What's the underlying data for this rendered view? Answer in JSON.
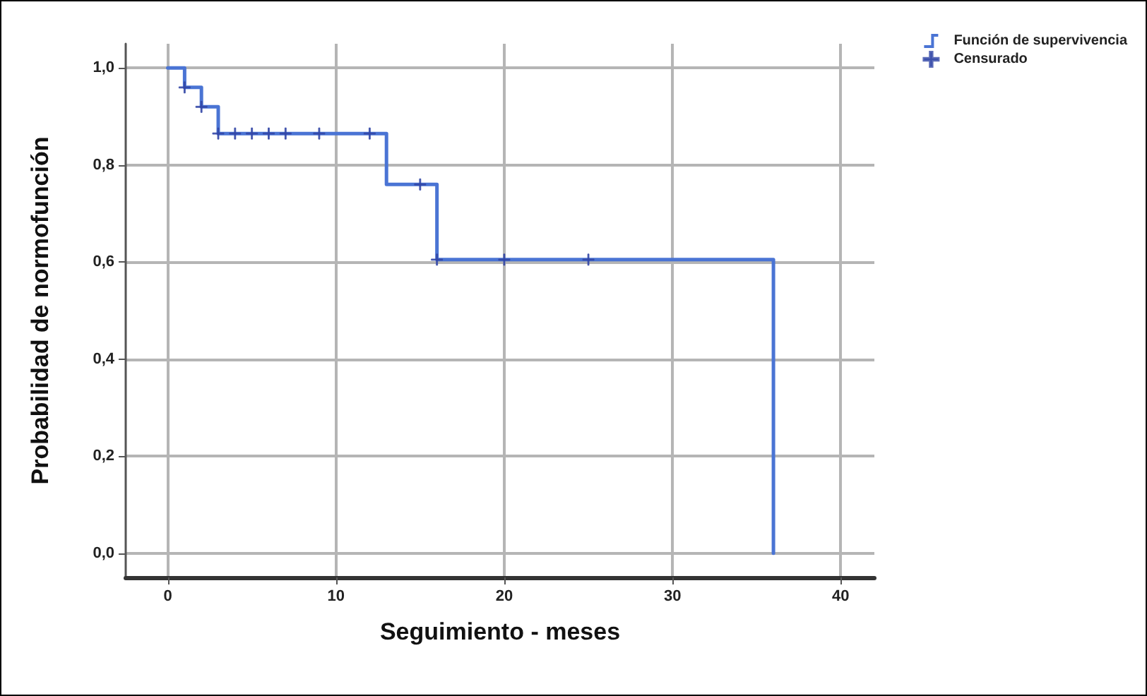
{
  "chart_data": {
    "type": "step",
    "xlabel": "Seguimiento - meses",
    "ylabel": "Probabilidad de normofunción",
    "series": [
      {
        "name": "Función de supervivencia",
        "color": "#4a74d4",
        "x": [
          0,
          1,
          2,
          3,
          13,
          16,
          36
        ],
        "values": [
          1,
          0.96,
          0.92,
          0.865,
          0.76,
          0.605,
          0
        ],
        "marker": "none",
        "line_style": "solid"
      },
      {
        "name": "Censurado",
        "type": "scatter",
        "color": "#3549a8",
        "x": [
          1,
          2,
          3,
          4,
          5,
          6,
          7,
          9,
          12,
          15,
          16,
          20,
          25
        ],
        "values": [
          0.96,
          0.92,
          0.865,
          0.865,
          0.865,
          0.865,
          0.865,
          0.865,
          0.865,
          0.76,
          0.605,
          0.605,
          0.605
        ],
        "marker": "cross"
      }
    ],
    "xlim": [
      -2.5,
      42
    ],
    "ylim": [
      -0.05,
      1.05
    ],
    "xticks": [
      0,
      10,
      20,
      30,
      40
    ],
    "yticks": [
      {
        "value": 0,
        "label": "0,0"
      },
      {
        "value": 0.2,
        "label": "0,2"
      },
      {
        "value": 0.4,
        "label": "0,4"
      },
      {
        "value": 0.6,
        "label": "0,6"
      },
      {
        "value": 0.8,
        "label": "0,8"
      },
      {
        "value": 1,
        "label": "1,0"
      }
    ],
    "grid": true,
    "legend": "top right"
  }
}
